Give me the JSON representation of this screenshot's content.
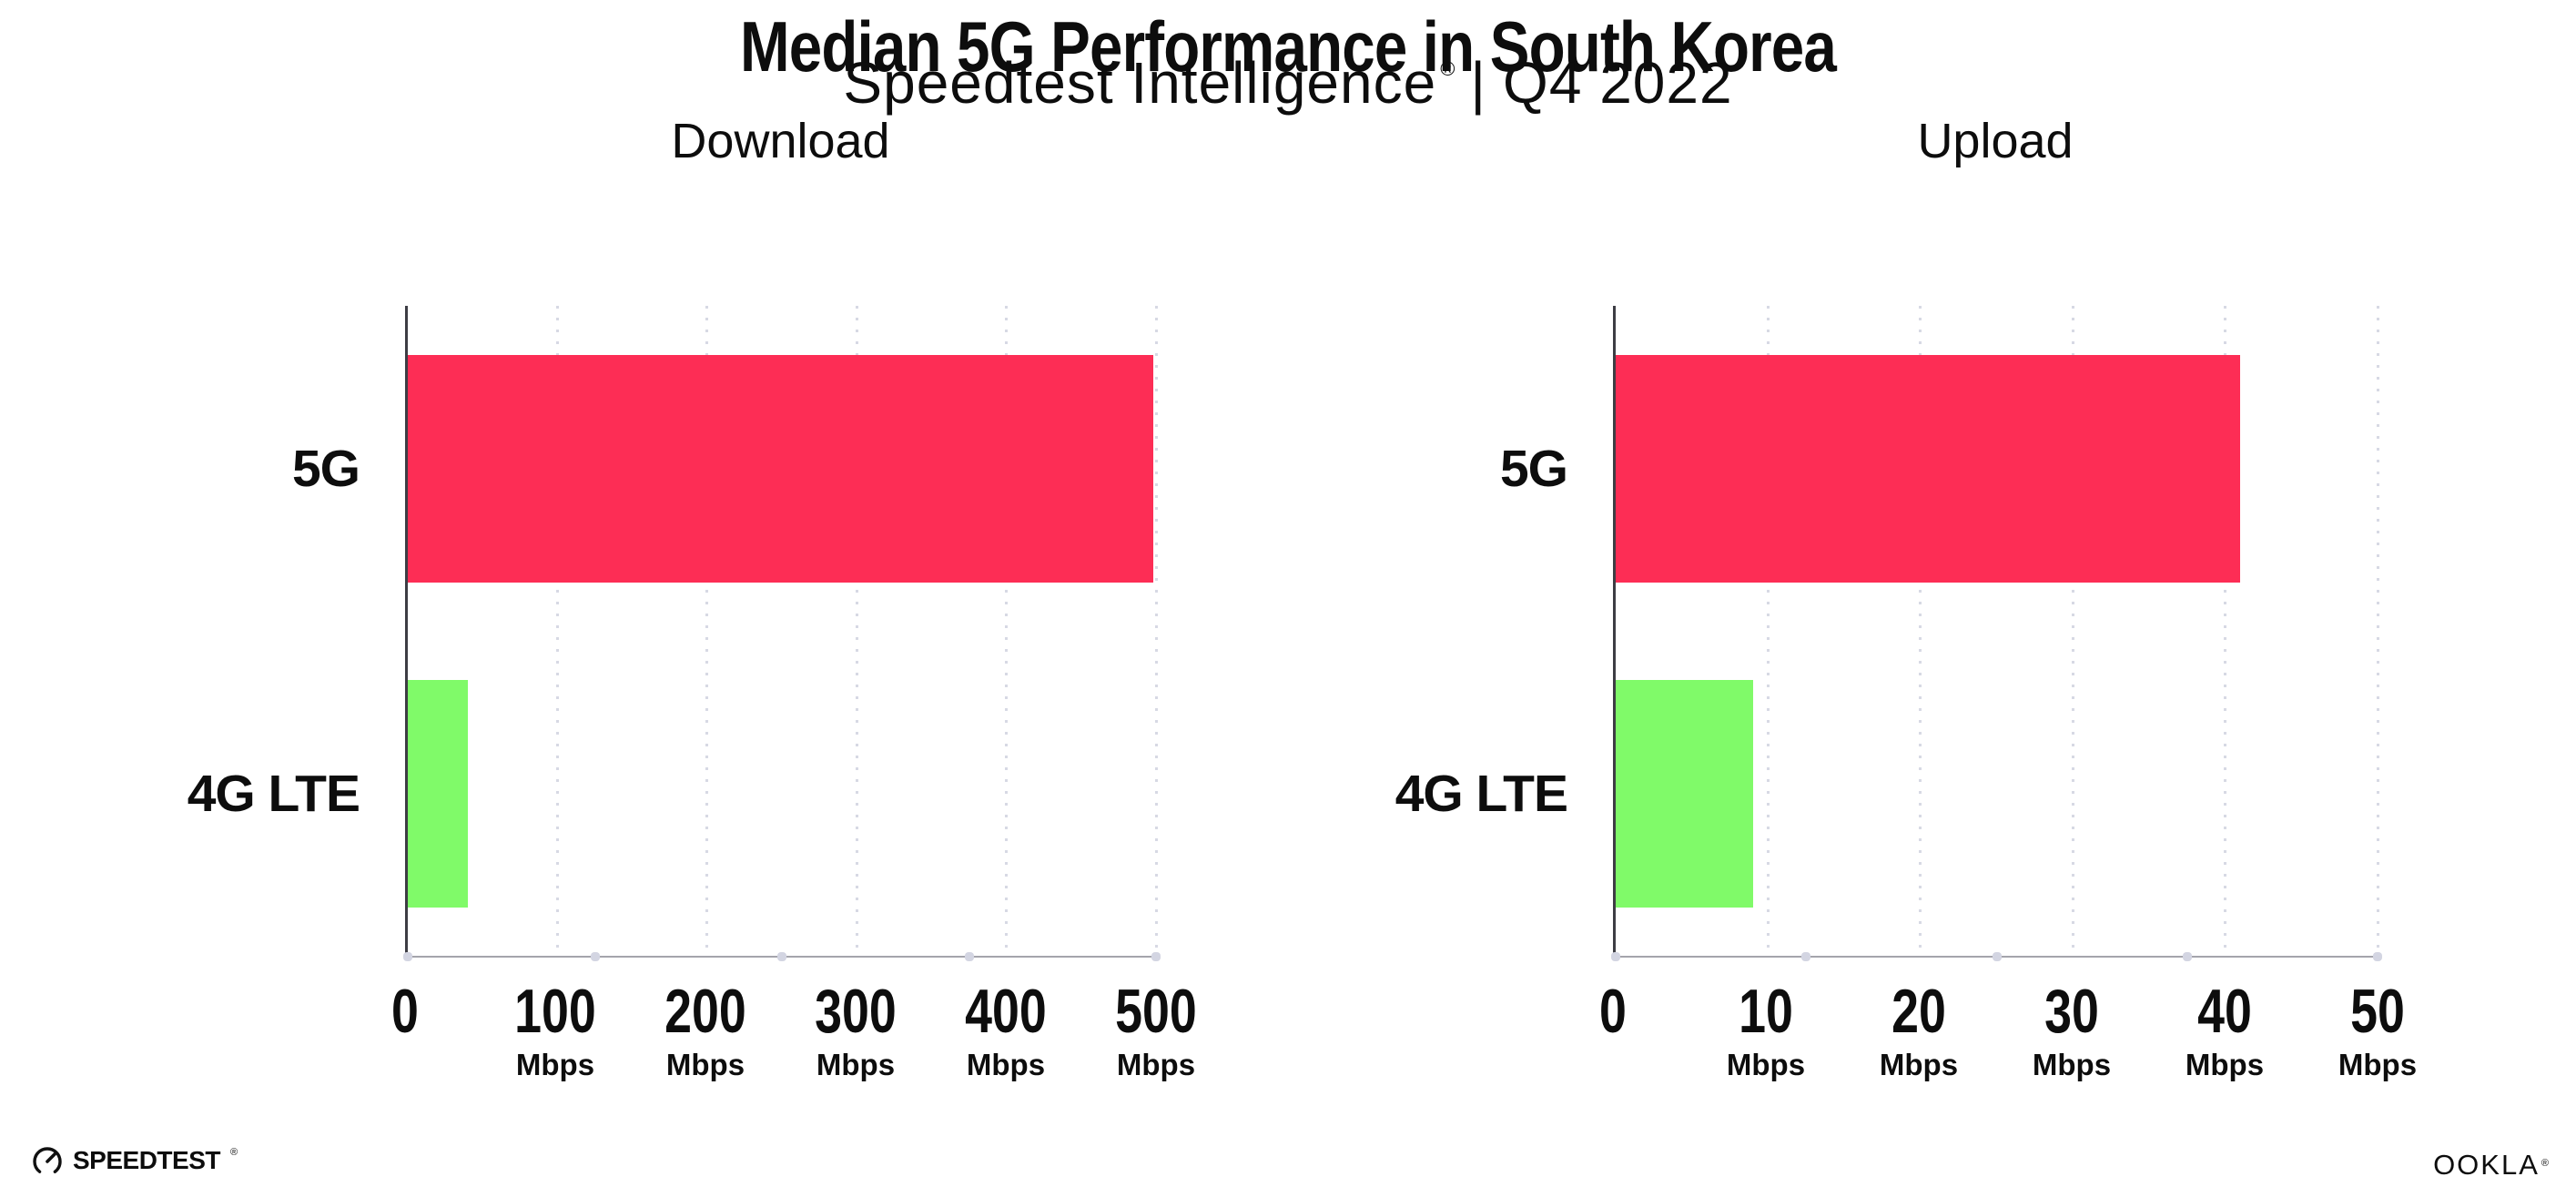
{
  "header": {
    "title": "Median 5G Performance in South Korea",
    "subtitle": {
      "brand": "Speedtest Intelligence",
      "registered_mark": "®",
      "divider": "|",
      "period": "Q4 2022"
    }
  },
  "chart_data": [
    {
      "type": "bar",
      "orientation": "horizontal",
      "title": "Download",
      "categories": [
        "5G",
        "4G LTE"
      ],
      "values": [
        498,
        40
      ],
      "unit": "Mbps",
      "xlim": [
        0,
        500
      ],
      "x_ticks": [
        {
          "value": 0,
          "label": "0",
          "unit": ""
        },
        {
          "value": 100,
          "label": "100",
          "unit": "Mbps"
        },
        {
          "value": 200,
          "label": "200",
          "unit": "Mbps"
        },
        {
          "value": 300,
          "label": "300",
          "unit": "Mbps"
        },
        {
          "value": 400,
          "label": "400",
          "unit": "Mbps"
        },
        {
          "value": 500,
          "label": "500",
          "unit": "Mbps"
        }
      ],
      "bar_colors": [
        "#FD2D55",
        "#80FA69"
      ],
      "grid": "vertical-dotted",
      "legend": "none"
    },
    {
      "type": "bar",
      "orientation": "horizontal",
      "title": "Upload",
      "categories": [
        "5G",
        "4G LTE"
      ],
      "values": [
        41,
        9
      ],
      "unit": "Mbps",
      "xlim": [
        0,
        50
      ],
      "x_ticks": [
        {
          "value": 0,
          "label": "0",
          "unit": ""
        },
        {
          "value": 10,
          "label": "10",
          "unit": "Mbps"
        },
        {
          "value": 20,
          "label": "20",
          "unit": "Mbps"
        },
        {
          "value": 30,
          "label": "30",
          "unit": "Mbps"
        },
        {
          "value": 40,
          "label": "40",
          "unit": "Mbps"
        },
        {
          "value": 50,
          "label": "50",
          "unit": "Mbps"
        }
      ],
      "bar_colors": [
        "#FD2D55",
        "#80FA69"
      ],
      "grid": "vertical-dotted",
      "legend": "none"
    }
  ],
  "footer": {
    "speedtest_wordmark": "SPEEDTEST",
    "speedtest_mark": "®",
    "ookla_wordmark": "OOKLA",
    "ookla_mark": "®"
  },
  "colors": {
    "bar_5g": "#FD2D55",
    "bar_4g_lte": "#80FA69",
    "grid_dots": "#d7d9e4",
    "text": "#0d0d0d"
  }
}
